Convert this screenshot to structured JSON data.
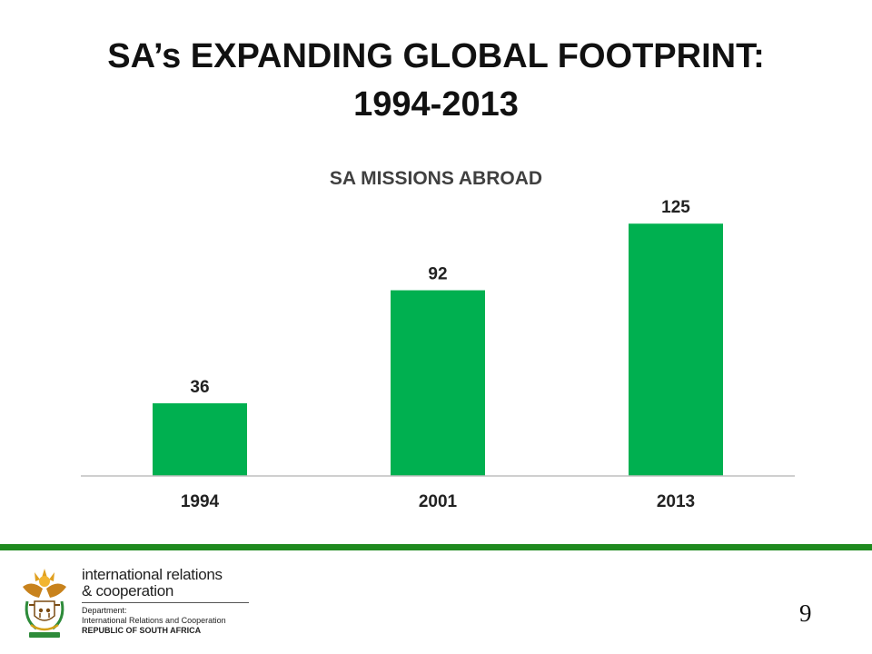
{
  "slide": {
    "title_line1": "SA’s EXPANDING GLOBAL FOOTPRINT:",
    "title_line2": "1994-2013",
    "page_number": "9"
  },
  "footer": {
    "org_line1": "international relations",
    "org_line2": "& cooperation",
    "dept_label": "Department:",
    "dept_name": "International Relations and Cooperation",
    "country": "REPUBLIC OF SOUTH AFRICA",
    "stripe_color": "#1f8a1f"
  },
  "chart_data": {
    "type": "bar",
    "title": "SA MISSIONS ABROAD",
    "categories": [
      "1994",
      "2001",
      "2013"
    ],
    "values": [
      36,
      92,
      125
    ],
    "xlabel": "",
    "ylabel": "",
    "ylim": [
      0,
      135
    ],
    "grid": false,
    "data_labels": true,
    "bar_color": "#00b050",
    "axis_color": "#bfbfbf"
  }
}
